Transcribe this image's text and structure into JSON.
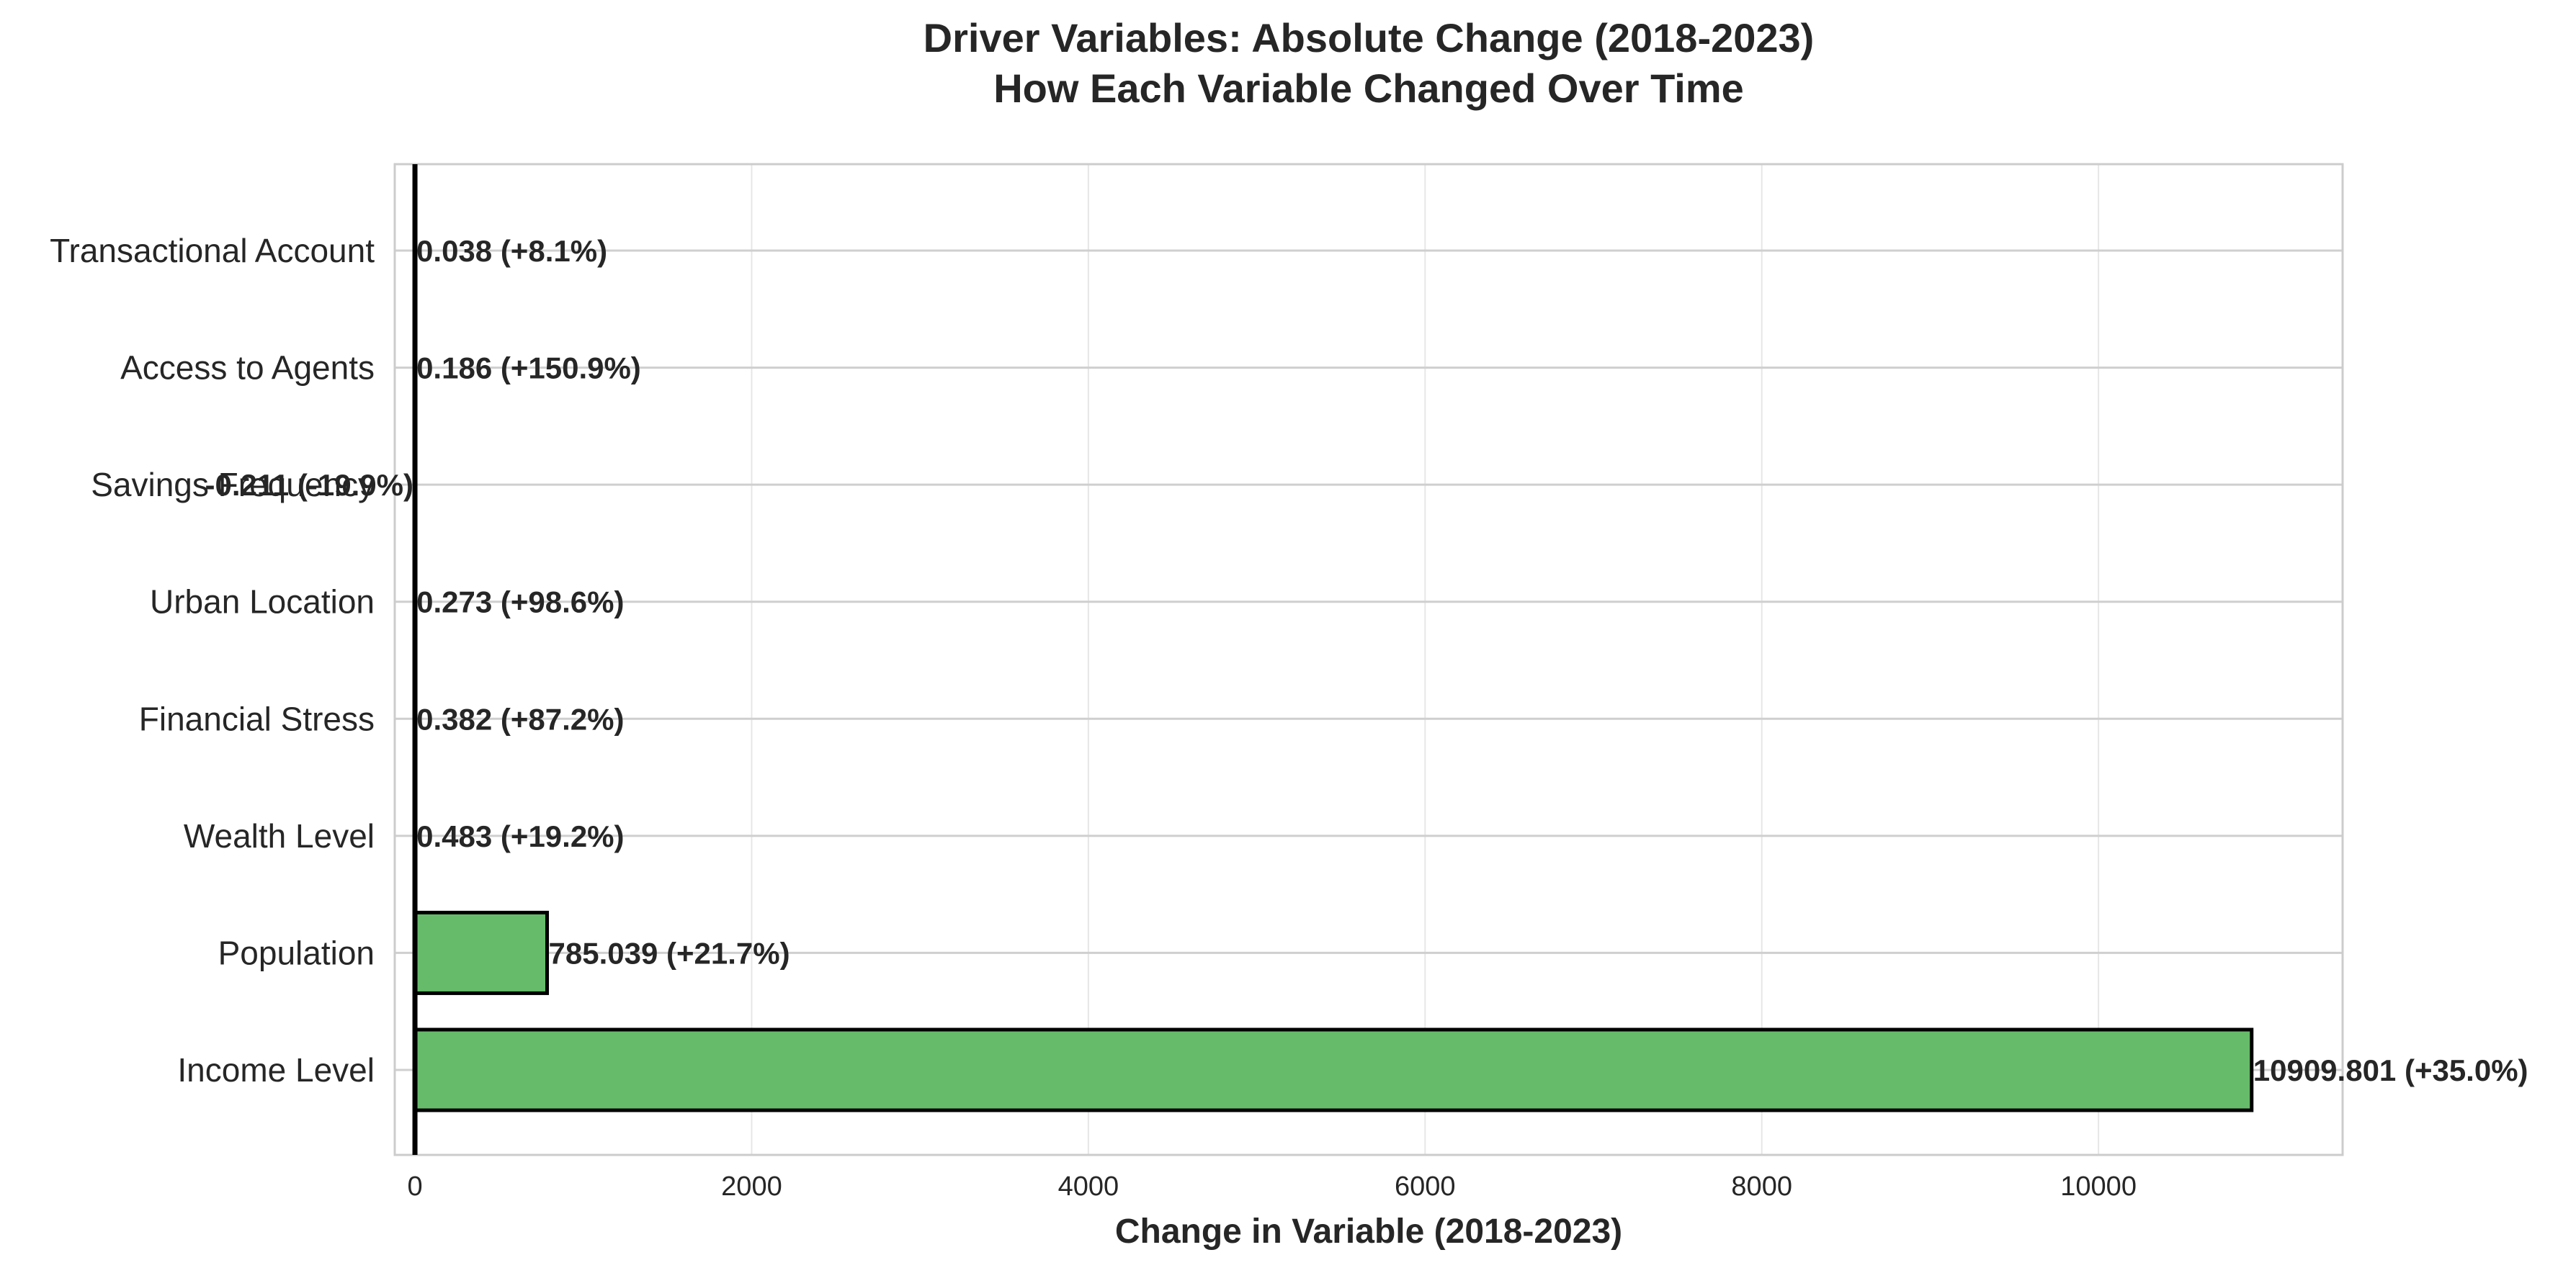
{
  "chart_data": {
    "type": "bar",
    "orientation": "horizontal",
    "title": "Driver Variables: Absolute Change (2018-2023)",
    "subtitle": "How Each Variable Changed Over Time",
    "xlabel": "Change in Variable (2018-2023)",
    "ylabel": "",
    "xlim": [
      -120,
      11450
    ],
    "x_ticks": [
      0,
      2000,
      4000,
      6000,
      8000,
      10000
    ],
    "x_tick_labels": [
      "0",
      "2000",
      "4000",
      "6000",
      "8000",
      "10000"
    ],
    "grid": true,
    "zero_line": true,
    "colors": {
      "bar_positive": "#66bb6a",
      "bar_negative": "#ef5350",
      "bar_edge": "#000000",
      "grid": "#e6e6e6",
      "frame": "#cccccc",
      "text": "#262626"
    },
    "bars": [
      {
        "category": "Transactional Account",
        "value": 0.038,
        "label": "0.038 (+8.1%)"
      },
      {
        "category": "Access to Agents",
        "value": 0.186,
        "label": "0.186 (+150.9%)"
      },
      {
        "category": "Savings Frequency",
        "value": -0.211,
        "label": "-0.211 (-19.9%)"
      },
      {
        "category": "Urban Location",
        "value": 0.273,
        "label": "0.273 (+98.6%)"
      },
      {
        "category": "Financial Stress",
        "value": 0.382,
        "label": "0.382 (+87.2%)"
      },
      {
        "category": "Wealth Level",
        "value": 0.483,
        "label": "0.483 (+19.2%)"
      },
      {
        "category": "Population",
        "value": 785.039,
        "label": "785.039 (+21.7%)"
      },
      {
        "category": "Income Level",
        "value": 10909.801,
        "label": "10909.801 (+35.0%)"
      }
    ]
  }
}
